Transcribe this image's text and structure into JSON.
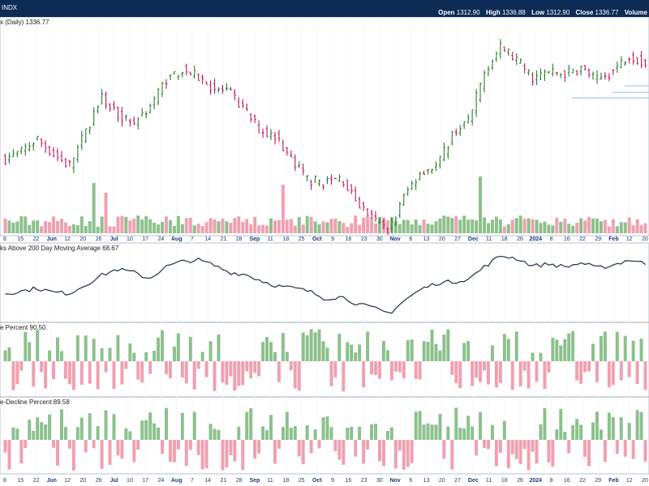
{
  "header": {
    "symbol": "INDX",
    "ohlc_labels": [
      "Open",
      "High",
      "Low",
      "Close",
      "Volume"
    ],
    "open": "1312.90",
    "high": "1336.88",
    "low": "1312.90",
    "close": "1336.77"
  },
  "panels": {
    "price_title": "x (Daily) 1336.77",
    "ma_title": "ks Above 200 Day Moving Average 68.67",
    "p3_title": "e Percent 90.50",
    "p4_title": "e-Decline Percent 89.58"
  },
  "colors": {
    "up": "#2e7d32",
    "down": "#c2185b",
    "vol_up": "#8cc08c",
    "vol_down": "#f0a0b0",
    "line": "#2f3e50",
    "support": "#aacce6"
  },
  "chart_data": [
    {
      "type": "candlestick",
      "title": "x (Daily) 1336.77",
      "x_tick_labels": [
        "8",
        "15",
        "22",
        "Jun",
        "12",
        "20",
        "26",
        "Jul",
        "10",
        "17",
        "24",
        "Aug",
        "7",
        "14",
        "21",
        "28",
        "Sep",
        "11",
        "18",
        "25",
        "Oct",
        "9",
        "16",
        "23",
        "30",
        "Nov",
        "6",
        "13",
        "20",
        "27",
        "Dec",
        "11",
        "18",
        "26",
        "2024",
        "8",
        "16",
        "22",
        "29",
        "Feb",
        "12",
        "20"
      ],
      "x_tick_bold": [
        "Jun",
        "Jul",
        "Aug",
        "Sep",
        "Oct",
        "Nov",
        "Dec",
        "2024",
        "Feb"
      ],
      "close_path": [
        1180,
        1189,
        1207,
        1186,
        1170,
        1215,
        1262,
        1240,
        1228,
        1249,
        1285,
        1300,
        1290,
        1274,
        1268,
        1243,
        1216,
        1210,
        1173,
        1151,
        1148,
        1154,
        1121,
        1098,
        1084,
        1133,
        1164,
        1170,
        1216,
        1232,
        1300,
        1330,
        1311,
        1288,
        1296,
        1294,
        1301,
        1285,
        1298,
        1320,
        1306
      ],
      "y_range": [
        1080,
        1360
      ]
    },
    {
      "type": "bar",
      "title": "Volume",
      "spikes": [
        "Jun 12",
        "Jun 20",
        "Sep 18",
        "Dec 18"
      ]
    },
    {
      "type": "line",
      "title": "ks Above 200 Day Moving Average 68.67",
      "last_value": 68.67,
      "path": [
        36,
        38,
        41,
        37,
        36,
        44,
        53,
        59,
        56,
        50,
        61,
        66,
        68,
        63,
        56,
        54,
        48,
        43,
        41,
        38,
        31,
        33,
        26,
        22,
        17,
        30,
        40,
        46,
        47,
        50,
        62,
        72,
        69,
        62,
        64,
        61,
        65,
        60,
        63,
        68,
        64
      ],
      "y_range": [
        10,
        80
      ]
    },
    {
      "type": "bar",
      "title": "e Percent 90.50",
      "last_value": 90.5,
      "y_range": [
        -100,
        100
      ]
    },
    {
      "type": "bar",
      "title": "e-Decline Percent 89.58",
      "last_value": 89.58,
      "y_range": [
        -100,
        100
      ]
    }
  ]
}
